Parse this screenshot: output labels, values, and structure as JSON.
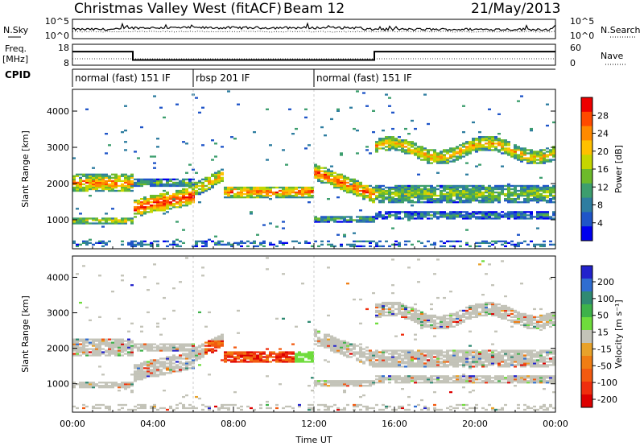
{
  "header": {
    "station": "Christmas Valley West (fitACF)",
    "beam": "Beam 12",
    "date": "21/May/2013"
  },
  "labels": {
    "nsky": "N.Sky",
    "nsearch": "N.Search",
    "freq": "Freq.",
    "mhz": "[MHz]",
    "nave": "Nave",
    "cpid": "CPID",
    "time_axis": "Time UT",
    "slant_range": "Slant Range [km]",
    "power_label": "Power [dB]",
    "velocity_label": "Velocity [m s⁻¹]"
  },
  "cpid_segments": [
    {
      "label": "normal (fast) 151 IF",
      "start_hour": 0
    },
    {
      "label": "rbsp 201 IF",
      "start_hour": 6
    },
    {
      "label": "normal (fast) 151 IF",
      "start_hour": 12
    }
  ],
  "chart_data": [
    {
      "type": "line",
      "name": "noise",
      "left_ticks": [
        "10^5",
        "10^0"
      ],
      "right_ticks": [
        "10^5",
        "10^0"
      ]
    },
    {
      "type": "line",
      "name": "frequency",
      "left_ticks": [
        "18",
        "8"
      ],
      "right_ticks": [
        "60",
        "0"
      ],
      "freq_steps": [
        {
          "start": 0,
          "end": 3,
          "value": 14.5
        },
        {
          "start": 3,
          "end": 15,
          "value": 10.5
        },
        {
          "start": 15,
          "end": 24,
          "value": 14.5
        }
      ]
    },
    {
      "type": "heatmap",
      "name": "power",
      "xlabel": "",
      "ylabel": "Slant Range [km]",
      "xlim": [
        0,
        24
      ],
      "ylim": [
        200,
        4600
      ],
      "yticks": [
        "1000",
        "2000",
        "3000",
        "4000"
      ],
      "colorbar_label": "Power [dB]",
      "colorbar_ticks": [
        "4",
        "8",
        "12",
        "16",
        "20",
        "24",
        "28"
      ]
    },
    {
      "type": "heatmap",
      "name": "velocity",
      "xlabel": "Time UT",
      "ylabel": "Slant Range [km]",
      "xlim": [
        0,
        24
      ],
      "ylim": [
        200,
        4600
      ],
      "xticks": [
        "00:00",
        "04:00",
        "08:00",
        "12:00",
        "16:00",
        "20:00",
        "00:00"
      ],
      "yticks": [
        "1000",
        "2000",
        "3000",
        "4000"
      ],
      "colorbar_label": "Velocity [m s⁻¹]",
      "colorbar_ticks": [
        "200",
        "100",
        "50",
        "15",
        "-15",
        "-50",
        "-100",
        "-200"
      ]
    }
  ],
  "colors": {
    "power": [
      "#0000ee",
      "#1f55c8",
      "#2e7da0",
      "#3d9e6e",
      "#6dba2a",
      "#c5d600",
      "#ffc000",
      "#ff8a00",
      "#ff4a00",
      "#ee0000"
    ],
    "velocity": [
      "#2222cc",
      "#2f6dd0",
      "#2f8a72",
      "#3eb24a",
      "#6fdc3c",
      "#c3c3b8",
      "#e8a22a",
      "#f07d13",
      "#f25a10",
      "#ef2e0e",
      "#dd0000"
    ]
  }
}
